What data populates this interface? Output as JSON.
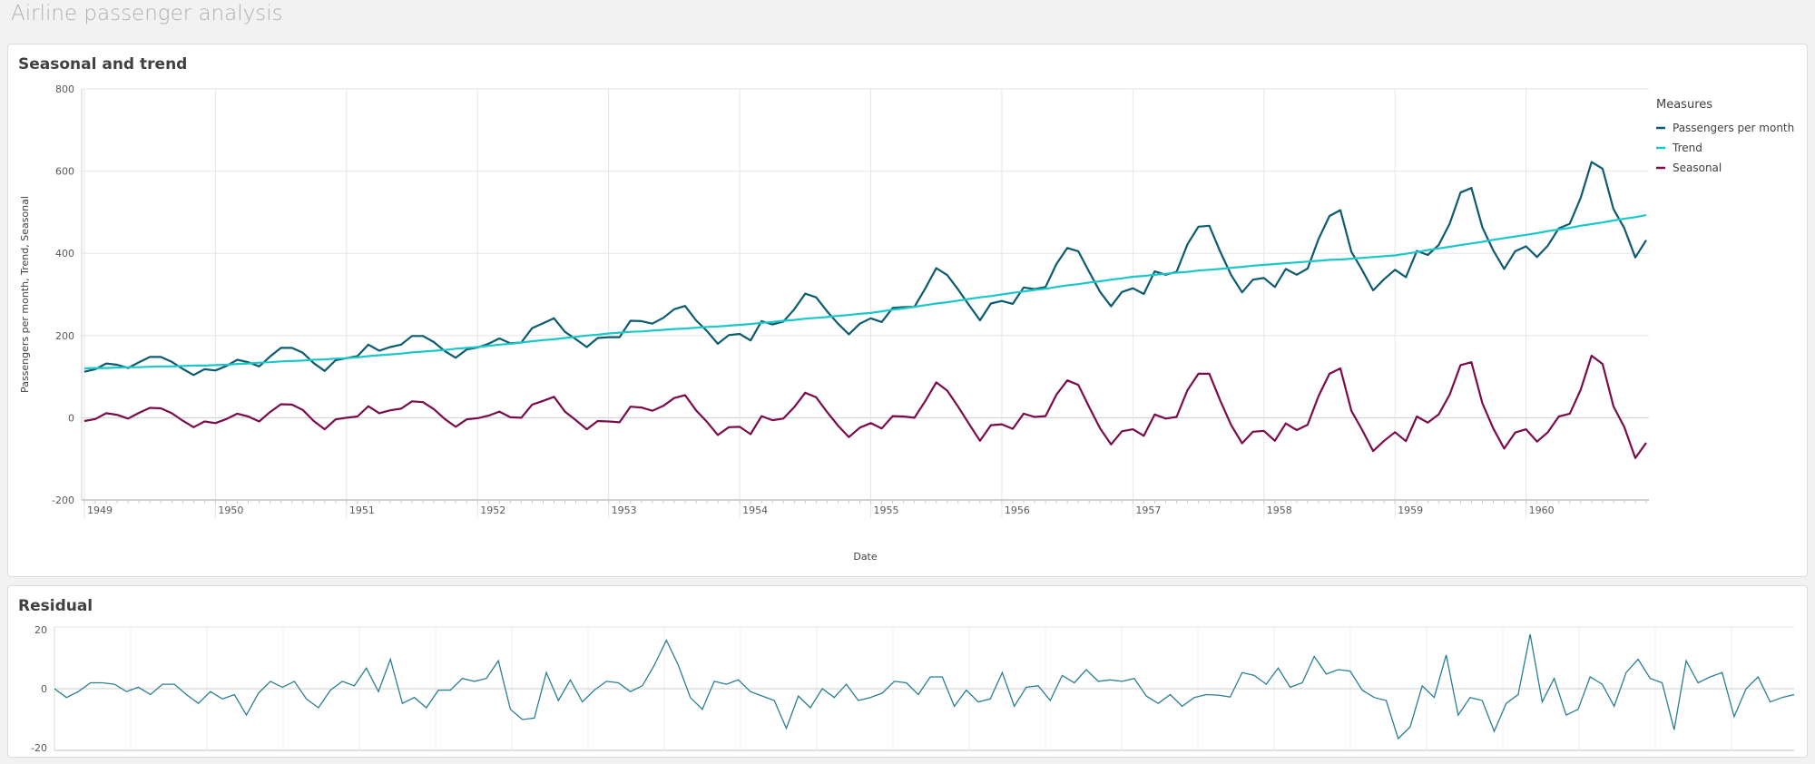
{
  "app": {
    "title": "Airline passenger analysis"
  },
  "colors": {
    "passengers": "#0d5b70",
    "trend": "#19c8c8",
    "seasonal": "#7b0c4c",
    "residual": "#2a7f94"
  },
  "chart_data": [
    {
      "type": "line",
      "title": "Seasonal and trend",
      "xlabel": "Date",
      "ylabel": "Passengers per month, Trend, Seasonal",
      "x_frequency": "monthly",
      "x_ticks": [
        "1949",
        "1950",
        "1951",
        "1952",
        "1953",
        "1954",
        "1955",
        "1956",
        "1957",
        "1958",
        "1959",
        "1960"
      ],
      "y_ticks": [
        "800",
        "600",
        "400",
        "200",
        "0",
        "-200"
      ],
      "ylim": [
        -200,
        800
      ],
      "grid": true,
      "legend": {
        "title": "Measures",
        "placement": "right"
      },
      "series": [
        {
          "name": "Passengers per month",
          "values": [
            112,
            118,
            132,
            129,
            121,
            135,
            148,
            148,
            136,
            119,
            104,
            118,
            115,
            126,
            141,
            135,
            125,
            149,
            170,
            170,
            158,
            133,
            114,
            140,
            145,
            150,
            178,
            163,
            172,
            178,
            199,
            199,
            184,
            162,
            146,
            166,
            171,
            180,
            193,
            181,
            183,
            218,
            230,
            242,
            209,
            191,
            172,
            194,
            196,
            196,
            236,
            235,
            229,
            243,
            264,
            272,
            237,
            211,
            180,
            201,
            204,
            188,
            235,
            227,
            234,
            264,
            302,
            293,
            259,
            229,
            203,
            229,
            242,
            233,
            267,
            269,
            270,
            315,
            364,
            347,
            312,
            274,
            237,
            278,
            284,
            277,
            317,
            313,
            318,
            374,
            413,
            405,
            355,
            306,
            271,
            306,
            315,
            301,
            356,
            348,
            355,
            422,
            465,
            467,
            404,
            347,
            305,
            336,
            340,
            318,
            362,
            348,
            363,
            435,
            491,
            505,
            404,
            359,
            310,
            337,
            360,
            342,
            406,
            396,
            420,
            472,
            548,
            559,
            463,
            407,
            362,
            405,
            417,
            391,
            419,
            461,
            472,
            535,
            622,
            606,
            508,
            461,
            390,
            432
          ]
        },
        {
          "name": "Trend",
          "values": [
            120,
            121,
            121,
            122,
            123,
            123,
            124,
            125,
            125,
            126,
            127,
            127,
            128,
            129,
            131,
            132,
            134,
            135,
            137,
            138,
            139,
            141,
            142,
            144,
            145,
            147,
            150,
            152,
            154,
            156,
            159,
            161,
            163,
            165,
            168,
            170,
            172,
            175,
            178,
            180,
            183,
            186,
            189,
            191,
            194,
            197,
            200,
            202,
            205,
            207,
            209,
            210,
            212,
            214,
            216,
            217,
            219,
            221,
            222,
            224,
            226,
            228,
            231,
            233,
            236,
            238,
            241,
            243,
            245,
            248,
            250,
            253,
            255,
            259,
            263,
            266,
            270,
            274,
            278,
            281,
            285,
            289,
            293,
            296,
            300,
            304,
            307,
            311,
            314,
            318,
            322,
            325,
            329,
            332,
            336,
            339,
            343,
            345,
            348,
            350,
            353,
            355,
            358,
            360,
            362,
            365,
            367,
            370,
            372,
            374,
            376,
            378,
            380,
            382,
            384,
            385,
            387,
            389,
            391,
            393,
            395,
            399,
            403,
            408,
            412,
            416,
            420,
            424,
            428,
            433,
            437,
            441,
            445,
            449,
            454,
            458,
            462,
            467,
            471,
            475,
            480,
            484,
            488,
            493
          ]
        },
        {
          "name": "Seasonal",
          "values": [
            -8,
            -3,
            11,
            7,
            -2,
            12,
            24,
            23,
            11,
            -7,
            -23,
            -9,
            -13,
            -3,
            10,
            3,
            -9,
            14,
            33,
            32,
            19,
            -8,
            -28,
            -4,
            0,
            3,
            28,
            11,
            18,
            22,
            40,
            38,
            21,
            -3,
            -22,
            -4,
            -1,
            5,
            15,
            1,
            0,
            32,
            41,
            51,
            15,
            -6,
            -28,
            -8,
            -9,
            -11,
            27,
            25,
            17,
            29,
            48,
            55,
            18,
            -10,
            -42,
            -23,
            -22,
            -40,
            4,
            -6,
            -2,
            26,
            61,
            50,
            14,
            -19,
            -47,
            -24,
            -13,
            -26,
            4,
            3,
            0,
            41,
            86,
            66,
            27,
            -15,
            -56,
            -18,
            -16,
            -27,
            10,
            2,
            4,
            56,
            91,
            80,
            26,
            -26,
            -65,
            -33,
            -28,
            -44,
            8,
            -2,
            2,
            67,
            107,
            107,
            42,
            -18,
            -62,
            -34,
            -32,
            -56,
            -14,
            -30,
            -17,
            53,
            107,
            120,
            17,
            -30,
            -81,
            -56,
            -35,
            -57,
            3,
            -12,
            8,
            56,
            128,
            135,
            35,
            -26,
            -75,
            -36,
            -28,
            -58,
            -35,
            3,
            10,
            68,
            151,
            131,
            28,
            -23,
            -98,
            -61
          ]
        }
      ]
    },
    {
      "type": "line",
      "title": "Residual",
      "x_frequency": "monthly",
      "y_ticks": [
        "20",
        "0",
        "-20"
      ],
      "ylim": [
        -21,
        21
      ],
      "grid": true,
      "series": [
        {
          "values": [
            0,
            -3,
            -1,
            2,
            2,
            1.5,
            -1,
            0.5,
            -2,
            1.5,
            1.5,
            -2,
            -5,
            -1,
            -3.5,
            -2,
            -9,
            -1.5,
            2.5,
            0.5,
            2.5,
            -3.5,
            -6.5,
            -0.5,
            2.5,
            1,
            7,
            -1,
            10,
            -5,
            -3,
            -6.5,
            -0.5,
            -0.5,
            3.5,
            2.5,
            3.5,
            9.5,
            -7,
            -10.5,
            -10,
            5.5,
            -4,
            3,
            -4.5,
            -0.5,
            2.5,
            2,
            -1,
            1,
            8,
            16.5,
            8,
            -3,
            -7,
            2.5,
            1.5,
            3,
            -1,
            -2.5,
            -4,
            -13.5,
            -2.5,
            -6.5,
            0,
            -3,
            1.5,
            -4,
            -3,
            -1.5,
            2.5,
            2,
            -2,
            4,
            4,
            -6,
            -0.5,
            -4.5,
            -3.5,
            5.5,
            -6,
            0.5,
            1,
            -4,
            4.5,
            2,
            6.5,
            2.5,
            3,
            2.5,
            3.5,
            -2.5,
            -5,
            -2,
            -6,
            -3,
            -2,
            -2.2,
            -2.8,
            5.5,
            4.5,
            1.5,
            7,
            0.5,
            2,
            11,
            5,
            6.5,
            6,
            -0.5,
            -3,
            -4,
            -17,
            -13,
            1,
            -3,
            11.5,
            -9,
            -3,
            -4,
            -14.5,
            -5,
            -2,
            18.5,
            -4.5,
            3.5,
            -9,
            -7,
            4,
            1.5,
            -6,
            5.5,
            10,
            3.5,
            2,
            -14,
            9.5,
            2,
            4,
            5.5,
            -9.5,
            0,
            4,
            -4.5,
            -3,
            -2
          ]
        }
      ]
    }
  ]
}
